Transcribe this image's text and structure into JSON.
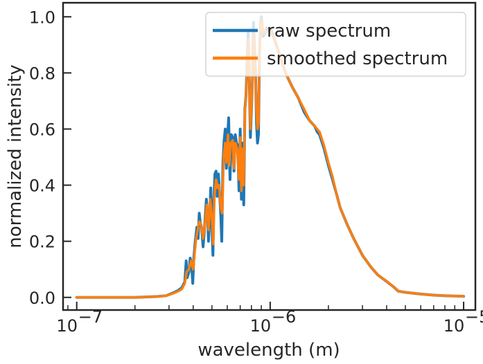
{
  "chart_data": {
    "type": "line",
    "title": "",
    "xlabel": "wavelength (m)",
    "ylabel": "normalized intensity",
    "xscale": "log",
    "xlim": [
      8.5e-08,
      1.15e-05
    ],
    "ylim": [
      -0.045,
      1.05
    ],
    "x_ticks": [
      {
        "value": 1e-07,
        "base": "10",
        "exp": "−7"
      },
      {
        "value": 1e-06,
        "base": "10",
        "exp": "−6"
      },
      {
        "value": 1e-05,
        "base": "10",
        "exp": "−5"
      }
    ],
    "y_ticks": [
      {
        "value": 0.0,
        "label": "0.0"
      },
      {
        "value": 0.2,
        "label": "0.2"
      },
      {
        "value": 0.4,
        "label": "0.4"
      },
      {
        "value": 0.6,
        "label": "0.6"
      },
      {
        "value": 0.8,
        "label": "0.8"
      },
      {
        "value": 1.0,
        "label": "1.0"
      }
    ],
    "grid": false,
    "legend_position": "top-right",
    "series": [
      {
        "name": "raw spectrum",
        "color": "#1f77b4",
        "points": [
          [
            1e-07,
            0.0
          ],
          [
            2e-07,
            0.0
          ],
          [
            2.6e-07,
            0.003
          ],
          [
            2.9e-07,
            0.006
          ],
          [
            3.05e-07,
            0.012
          ],
          [
            3.2e-07,
            0.018
          ],
          [
            3.35e-07,
            0.025
          ],
          [
            3.5e-07,
            0.035
          ],
          [
            3.62e-07,
            0.055
          ],
          [
            3.68e-07,
            0.13
          ],
          [
            3.72e-07,
            0.07
          ],
          [
            3.8e-07,
            0.09
          ],
          [
            3.86e-07,
            0.14
          ],
          [
            3.92e-07,
            0.12
          ],
          [
            3.98e-07,
            0.05
          ],
          [
            4.03e-07,
            0.14
          ],
          [
            4.1e-07,
            0.2
          ],
          [
            4.18e-07,
            0.25
          ],
          [
            4.24e-07,
            0.21
          ],
          [
            4.3e-07,
            0.3
          ],
          [
            4.36e-07,
            0.26
          ],
          [
            4.42e-07,
            0.25
          ],
          [
            4.5e-07,
            0.18
          ],
          [
            4.56e-07,
            0.23
          ],
          [
            4.62e-07,
            0.29
          ],
          [
            4.68e-07,
            0.35
          ],
          [
            4.74e-07,
            0.3
          ],
          [
            4.8e-07,
            0.2
          ],
          [
            4.86e-07,
            0.28
          ],
          [
            4.93e-07,
            0.39
          ],
          [
            5e-07,
            0.25
          ],
          [
            5.06e-07,
            0.15
          ],
          [
            5.12e-07,
            0.35
          ],
          [
            5.18e-07,
            0.44
          ],
          [
            5.25e-07,
            0.45
          ],
          [
            5.32e-07,
            0.36
          ],
          [
            5.4e-07,
            0.44
          ],
          [
            5.48e-07,
            0.37
          ],
          [
            5.55e-07,
            0.3
          ],
          [
            5.62e-07,
            0.2
          ],
          [
            5.7e-07,
            0.48
          ],
          [
            5.78e-07,
            0.56
          ],
          [
            5.86e-07,
            0.6
          ],
          [
            5.94e-07,
            0.46
          ],
          [
            6e-07,
            0.55
          ],
          [
            6.1e-07,
            0.64
          ],
          [
            6.2e-07,
            0.42
          ],
          [
            6.3e-07,
            0.58
          ],
          [
            6.4e-07,
            0.57
          ],
          [
            6.5e-07,
            0.45
          ],
          [
            6.6e-07,
            0.58
          ],
          [
            6.7e-07,
            0.55
          ],
          [
            6.8e-07,
            0.54
          ],
          [
            6.9e-07,
            0.38
          ],
          [
            7e-07,
            0.6
          ],
          [
            7.1e-07,
            0.35
          ],
          [
            7.2e-07,
            0.55
          ],
          [
            7.3e-07,
            0.33
          ],
          [
            7.4e-07,
            0.67
          ],
          [
            7.5e-07,
            0.72
          ],
          [
            7.6e-07,
            0.84
          ],
          [
            7.7e-07,
            0.95
          ],
          [
            7.8e-07,
            0.78
          ],
          [
            7.9e-07,
            0.57
          ],
          [
            8e-07,
            0.67
          ],
          [
            8.1e-07,
            0.78
          ],
          [
            8.2e-07,
            0.98
          ],
          [
            8.3e-07,
            0.88
          ],
          [
            8.4e-07,
            0.8
          ],
          [
            8.5e-07,
            0.62
          ],
          [
            8.6e-07,
            0.55
          ],
          [
            8.7e-07,
            0.58
          ],
          [
            8.8e-07,
            0.85
          ],
          [
            8.9e-07,
            0.97
          ],
          [
            9e-07,
            1.0
          ],
          [
            9.2e-07,
            0.93
          ],
          [
            9.4e-07,
            0.94
          ],
          [
            9.6e-07,
            0.96
          ],
          [
            9.8e-07,
            0.95
          ],
          [
            1e-06,
            0.96
          ],
          [
            1.05e-06,
            0.92
          ],
          [
            1.1e-06,
            0.88
          ],
          [
            1.15e-06,
            0.84
          ],
          [
            1.2e-06,
            0.8
          ],
          [
            1.3e-06,
            0.75
          ],
          [
            1.4e-06,
            0.71
          ],
          [
            1.5e-06,
            0.66
          ],
          [
            1.6e-06,
            0.63
          ],
          [
            1.7e-06,
            0.61
          ],
          [
            1.75e-06,
            0.59
          ],
          [
            1.8e-06,
            0.58
          ],
          [
            1.9e-06,
            0.53
          ],
          [
            2e-06,
            0.47
          ],
          [
            2.1e-06,
            0.42
          ],
          [
            2.2e-06,
            0.37
          ],
          [
            2.3e-06,
            0.32
          ],
          [
            2.5e-06,
            0.26
          ],
          [
            2.7e-06,
            0.21
          ],
          [
            3e-06,
            0.15
          ],
          [
            3.3e-06,
            0.11
          ],
          [
            3.6e-06,
            0.08
          ],
          [
            4e-06,
            0.057
          ],
          [
            4.3e-06,
            0.04
          ],
          [
            4.6e-06,
            0.022
          ],
          [
            5e-06,
            0.018
          ],
          [
            6e-06,
            0.012
          ],
          [
            7e-06,
            0.008
          ],
          [
            8e-06,
            0.006
          ],
          [
            1e-05,
            0.004
          ]
        ]
      },
      {
        "name": "smoothed spectrum",
        "color": "#ff7f0e",
        "points": [
          [
            1e-07,
            0.0
          ],
          [
            2e-07,
            0.0
          ],
          [
            2.6e-07,
            0.003
          ],
          [
            2.9e-07,
            0.006
          ],
          [
            3.05e-07,
            0.011
          ],
          [
            3.2e-07,
            0.016
          ],
          [
            3.35e-07,
            0.022
          ],
          [
            3.5e-07,
            0.03
          ],
          [
            3.62e-07,
            0.05
          ],
          [
            3.7e-07,
            0.09
          ],
          [
            3.8e-07,
            0.1
          ],
          [
            3.9e-07,
            0.13
          ],
          [
            4e-07,
            0.1
          ],
          [
            4.06e-07,
            0.15
          ],
          [
            4.14e-07,
            0.21
          ],
          [
            4.22e-07,
            0.24
          ],
          [
            4.3e-07,
            0.27
          ],
          [
            4.4e-07,
            0.26
          ],
          [
            4.5e-07,
            0.21
          ],
          [
            4.6e-07,
            0.26
          ],
          [
            4.7e-07,
            0.33
          ],
          [
            4.8e-07,
            0.24
          ],
          [
            4.9e-07,
            0.35
          ],
          [
            5e-07,
            0.28
          ],
          [
            5.08e-07,
            0.19
          ],
          [
            5.15e-07,
            0.36
          ],
          [
            5.25e-07,
            0.42
          ],
          [
            5.35e-07,
            0.39
          ],
          [
            5.45e-07,
            0.4
          ],
          [
            5.55e-07,
            0.32
          ],
          [
            5.65e-07,
            0.3
          ],
          [
            5.75e-07,
            0.5
          ],
          [
            5.85e-07,
            0.55
          ],
          [
            5.95e-07,
            0.48
          ],
          [
            6.05e-07,
            0.58
          ],
          [
            6.15e-07,
            0.47
          ],
          [
            6.25e-07,
            0.55
          ],
          [
            6.4e-07,
            0.56
          ],
          [
            6.5e-07,
            0.46
          ],
          [
            6.6e-07,
            0.55
          ],
          [
            6.75e-07,
            0.53
          ],
          [
            6.9e-07,
            0.42
          ],
          [
            7e-07,
            0.57
          ],
          [
            7.1e-07,
            0.38
          ],
          [
            7.2e-07,
            0.53
          ],
          [
            7.3e-07,
            0.4
          ],
          [
            7.4e-07,
            0.66
          ],
          [
            7.5e-07,
            0.72
          ],
          [
            7.6e-07,
            0.82
          ],
          [
            7.7e-07,
            0.92
          ],
          [
            7.8e-07,
            0.79
          ],
          [
            7.9e-07,
            0.6
          ],
          [
            8e-07,
            0.68
          ],
          [
            8.1e-07,
            0.78
          ],
          [
            8.2e-07,
            0.95
          ],
          [
            8.3e-07,
            0.87
          ],
          [
            8.4e-07,
            0.78
          ],
          [
            8.5e-07,
            0.66
          ],
          [
            8.6e-07,
            0.6
          ],
          [
            8.7e-07,
            0.62
          ],
          [
            8.8e-07,
            0.84
          ],
          [
            8.9e-07,
            0.96
          ],
          [
            9e-07,
            0.99
          ],
          [
            9.2e-07,
            0.94
          ],
          [
            9.4e-07,
            0.95
          ],
          [
            9.6e-07,
            0.95
          ],
          [
            9.8e-07,
            0.95
          ],
          [
            1e-06,
            0.95
          ],
          [
            1.05e-06,
            0.92
          ],
          [
            1.1e-06,
            0.88
          ],
          [
            1.15e-06,
            0.84
          ],
          [
            1.2e-06,
            0.8
          ],
          [
            1.3e-06,
            0.75
          ],
          [
            1.4e-06,
            0.71
          ],
          [
            1.5e-06,
            0.67
          ],
          [
            1.6e-06,
            0.63
          ],
          [
            1.7e-06,
            0.61
          ],
          [
            1.75e-06,
            0.6
          ],
          [
            1.8e-06,
            0.59
          ],
          [
            1.9e-06,
            0.54
          ],
          [
            2e-06,
            0.48
          ],
          [
            2.1e-06,
            0.43
          ],
          [
            2.2e-06,
            0.37
          ],
          [
            2.3e-06,
            0.32
          ],
          [
            2.5e-06,
            0.26
          ],
          [
            2.7e-06,
            0.21
          ],
          [
            3e-06,
            0.15
          ],
          [
            3.3e-06,
            0.11
          ],
          [
            3.6e-06,
            0.08
          ],
          [
            4e-06,
            0.058
          ],
          [
            4.3e-06,
            0.04
          ],
          [
            4.6e-06,
            0.022
          ],
          [
            5e-06,
            0.018
          ],
          [
            6e-06,
            0.012
          ],
          [
            7e-06,
            0.008
          ],
          [
            8e-06,
            0.006
          ],
          [
            1e-05,
            0.004
          ]
        ]
      }
    ]
  }
}
